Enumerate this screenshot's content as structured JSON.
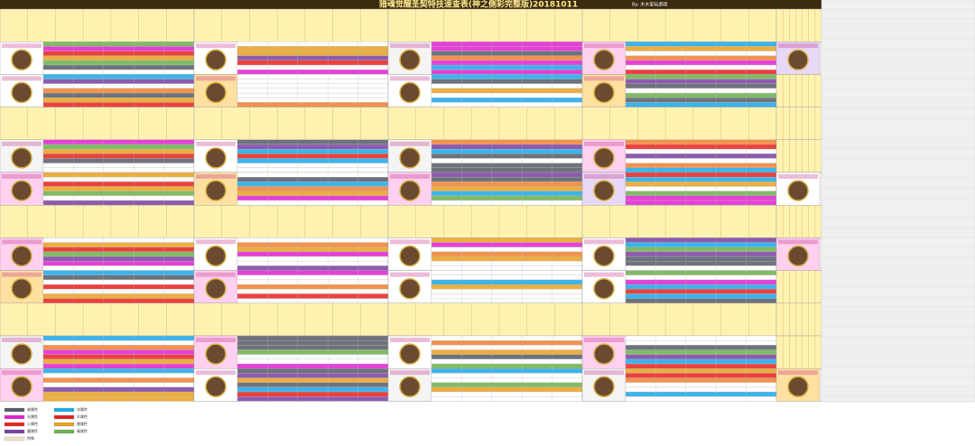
{
  "header": {
    "title": "猎魂觉醒圣契特技速查表(神之侧彩完整版)20181011",
    "credit": "By: 木木爱玩游戏"
  },
  "legend": [
    {
      "label": "暗属性",
      "color": "#555a66"
    },
    {
      "label": "光属性",
      "color": "#e020d0"
    },
    {
      "label": "火属性",
      "color": "#e8201c"
    },
    {
      "label": "魔属性",
      "color": "#7a3fa0"
    },
    {
      "label": "特殊",
      "color": "#f0e0c8"
    },
    {
      "label": "冰属性",
      "color": "#1aa8e8"
    },
    {
      "label": "炎属性",
      "color": "#e02020"
    },
    {
      "label": "雷属性",
      "color": "#e8a020"
    },
    {
      "label": "毒属性",
      "color": "#6ab04c"
    }
  ]
}
